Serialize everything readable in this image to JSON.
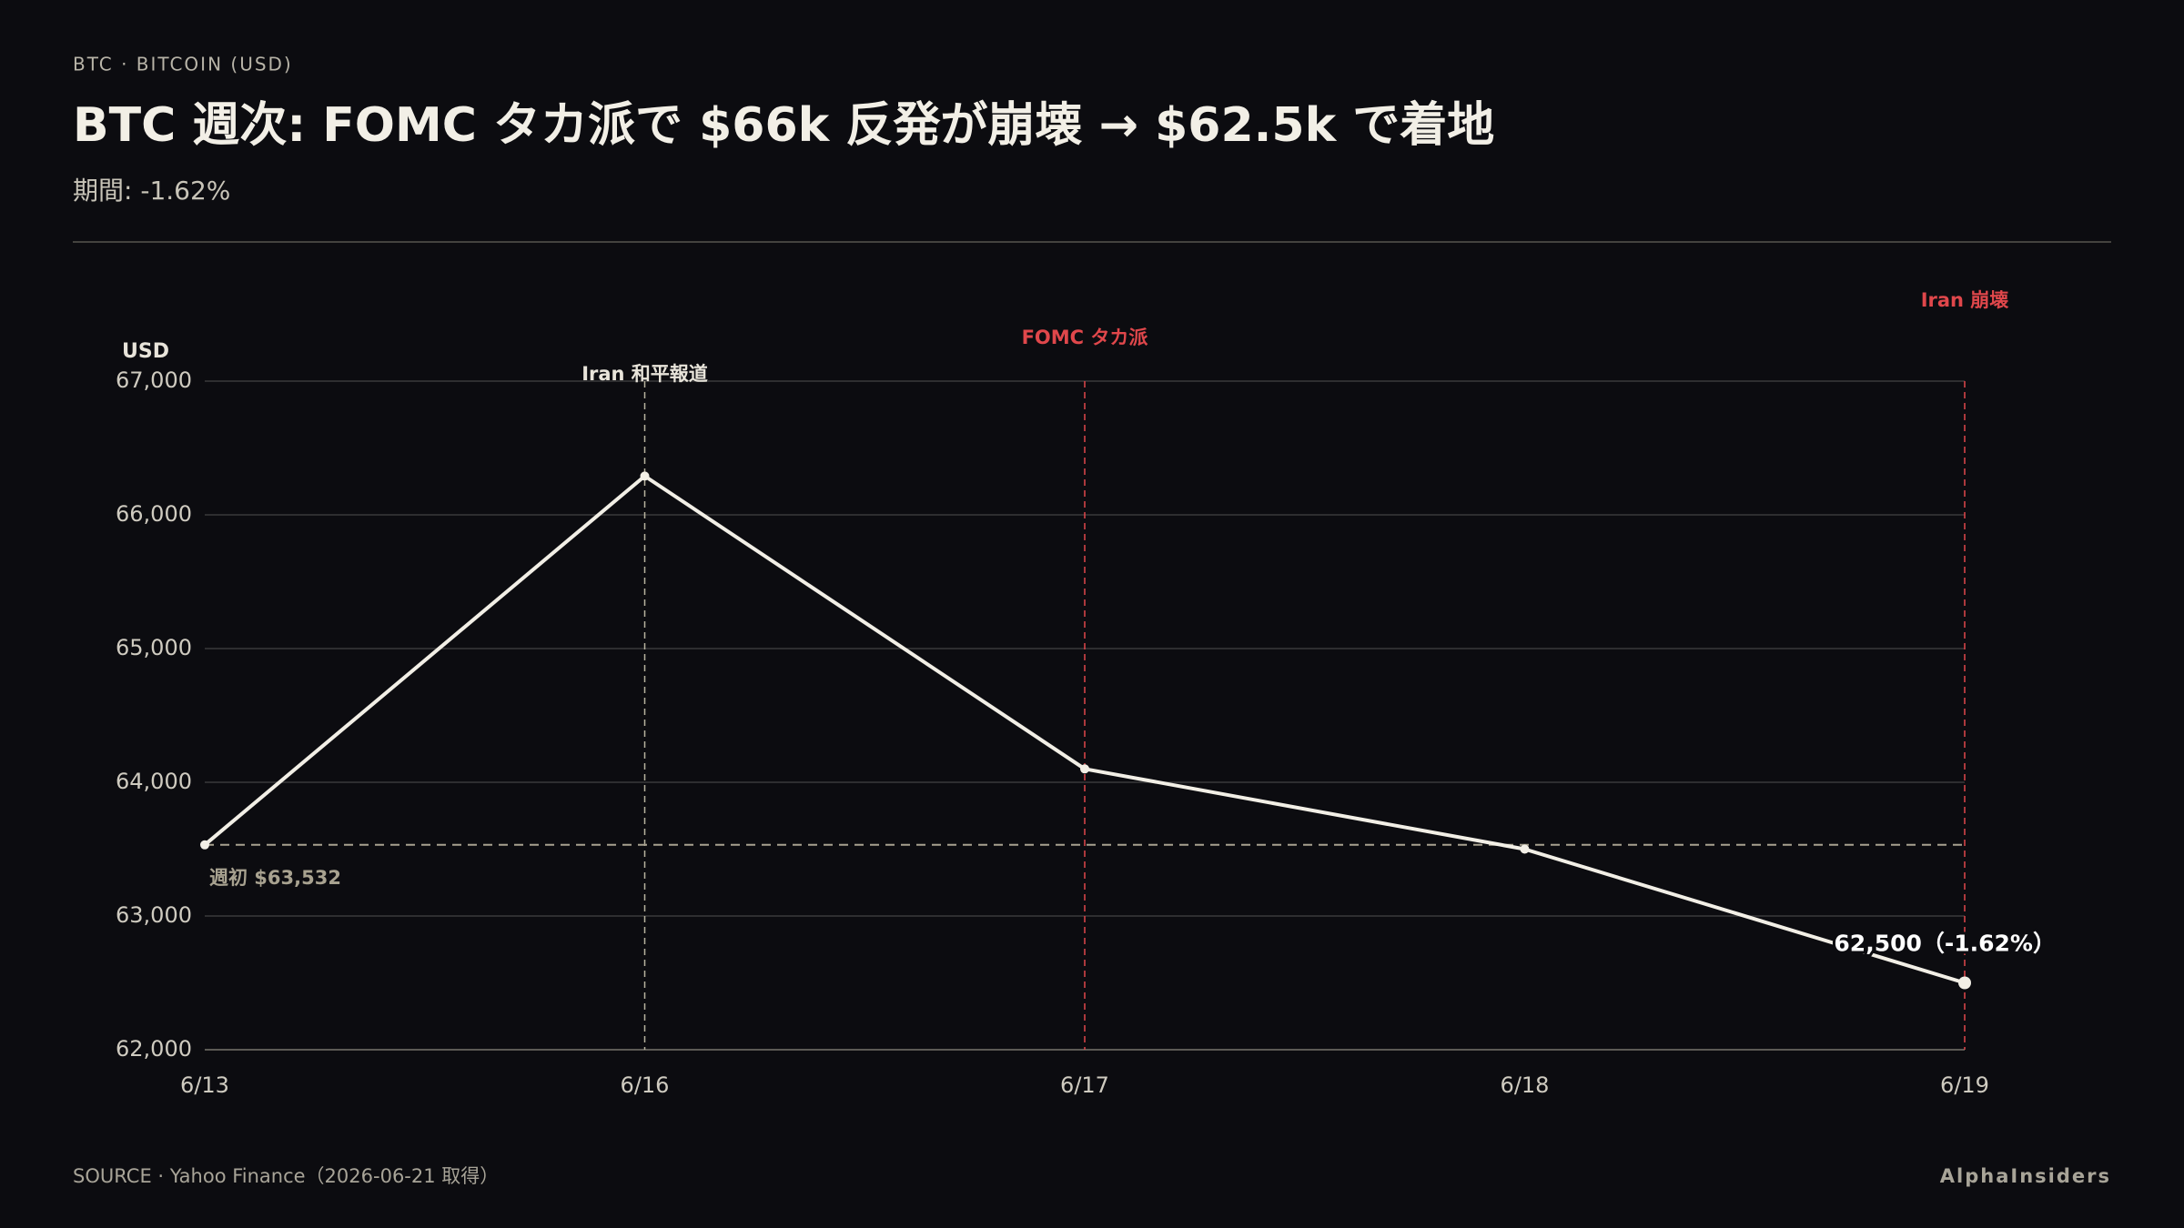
{
  "kicker": "BTC · BITCOIN (USD)",
  "chart_data": {
    "type": "line",
    "title": "BTC 週次: FOMC タカ派で $66k 反発が崩壊 → $62.5k で着地",
    "subtitle": "期間: -1.62%",
    "y_label": "USD",
    "categories": [
      "6/13",
      "6/16",
      "6/17",
      "6/18",
      "6/19"
    ],
    "values": [
      63532,
      66290,
      64100,
      63500,
      62500
    ],
    "value_labels": [
      null,
      null,
      null,
      null,
      "62,500（-1.62%）"
    ],
    "color": "#f2efe6",
    "ylim": [
      62000,
      67000
    ],
    "yticks": [
      {
        "value": 62000,
        "label": "62,000"
      },
      {
        "value": 63000,
        "label": "63,000"
      },
      {
        "value": 64000,
        "label": "64,000"
      },
      {
        "value": 65000,
        "label": "65,000"
      },
      {
        "value": 66000,
        "label": "66,000"
      },
      {
        "value": 67000,
        "label": "67,000"
      }
    ],
    "grid": true,
    "reference_line": {
      "value": 63532,
      "label": "週初 $63,532",
      "color": "#a8a290"
    },
    "events": [
      {
        "x": "6/16",
        "label": "Iran 和平報道",
        "color": "#b8b39f"
      },
      {
        "x": "6/17",
        "label": "FOMC タカ派",
        "color": "#e0474b"
      },
      {
        "x": "6/19",
        "label": "Iran 崩壊",
        "color": "#e0474b"
      }
    ]
  },
  "footer": {
    "source": "SOURCE · Yahoo Finance（2026-06-21 取得）",
    "brand": "AlphaInsiders"
  }
}
